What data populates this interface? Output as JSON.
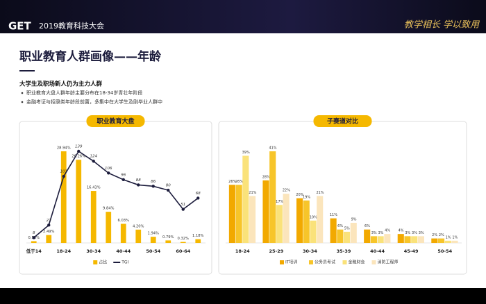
{
  "header": {
    "logo": "GET",
    "event": "2019教育科技大会",
    "slogan": "教学相长 学以致用"
  },
  "title": "职业教育人群画像——年龄",
  "subtitle": "大学生及职场新人仍为主力人群",
  "bullets": [
    "职业教育大盘人群年龄主要分布在18-34岁青壮年阶段",
    "金融考证与招录类年龄段前置，多集中在大学生及刚毕业人群中"
  ],
  "chart_data": [
    {
      "type": "bar",
      "title": "职业教育大盘",
      "categories": [
        "低于14",
        null,
        "18-24",
        null,
        "30-34",
        null,
        "40-44",
        null,
        "50-54",
        null,
        "60-64",
        null
      ],
      "series": [
        {
          "name": "占比",
          "color": "#f5b800",
          "values": [
            0.55,
            2.49,
            28.94,
            26.26,
            16.43,
            9.84,
            6.03,
            4.2,
            1.94,
            0.79,
            0.32,
            1.18
          ],
          "value_labels": [
            "0.55%",
            "2.49%",
            "28.94%",
            "26.26%",
            "16.43%",
            "9.84%",
            "6.03%",
            "4.20%",
            "1.94%",
            "0.79%",
            "0.32%",
            "1.18%"
          ]
        },
        {
          "name": "TGI",
          "type": "line",
          "axis": "y2",
          "color": "#1c1c3c",
          "values": [
            8,
            27,
            101,
            139,
            124,
            106,
            96,
            88,
            86,
            80,
            51,
            68
          ]
        }
      ]
    },
    {
      "type": "bar",
      "title": "子赛道对比",
      "categories": [
        "18-24",
        "25-29",
        "30-34",
        "35-39",
        "40-44",
        "45-49",
        "50-54"
      ],
      "series": [
        {
          "name": "IT培训",
          "color": "#f2a900",
          "values": [
            26,
            28,
            20,
            11,
            6,
            4,
            2
          ],
          "value_labels": [
            "26%",
            "28%",
            "20%",
            "11%",
            "6%",
            "4%",
            "2%"
          ]
        },
        {
          "name": "公务员考试",
          "color": "#f7c52a",
          "values": [
            26,
            41,
            19,
            6,
            3,
            3,
            2
          ],
          "value_labels": [
            "26%",
            "41%",
            "19%",
            "6%",
            "3%",
            "3%",
            "2%"
          ]
        },
        {
          "name": "金融财会",
          "color": "#fae27a",
          "values": [
            39,
            17,
            10,
            5,
            3,
            3,
            1
          ],
          "value_labels": [
            "39%",
            "17%",
            "10%",
            "5%",
            "3%",
            "3%",
            "1%"
          ]
        },
        {
          "name": "消防工程师",
          "color": "#fbe5bc",
          "values": [
            21,
            22,
            21,
            9,
            4,
            3,
            1
          ],
          "value_labels": [
            "21%",
            "22%",
            "21%",
            "9%",
            "4%",
            "3%",
            "1%"
          ]
        }
      ]
    }
  ]
}
